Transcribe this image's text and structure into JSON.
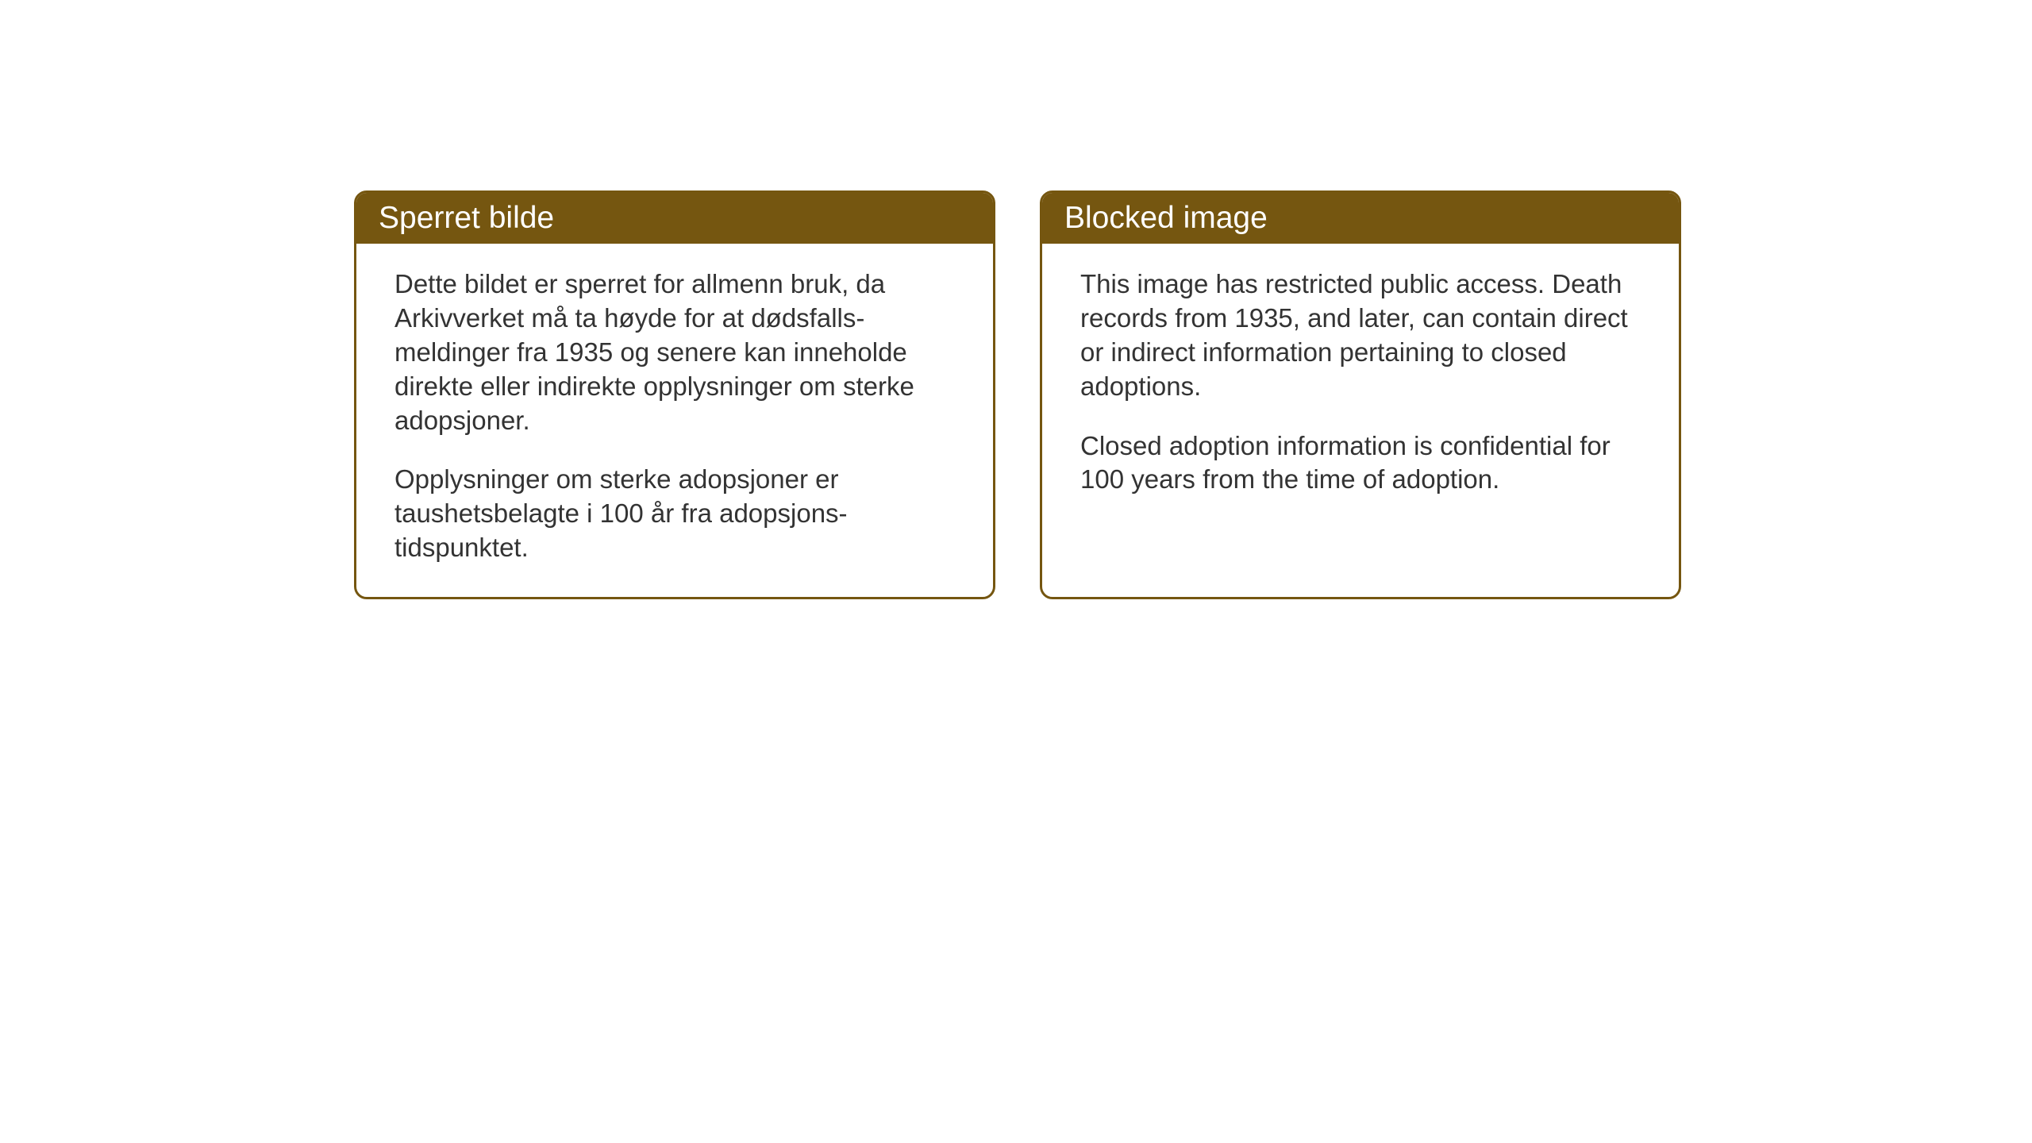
{
  "cards": {
    "norwegian": {
      "title": "Sperret bilde",
      "paragraph1": "Dette bildet er sperret for allmenn bruk, da Arkivverket må ta høyde for at dødsfalls-meldinger fra 1935 og senere kan inneholde direkte eller indirekte opplysninger om sterke adopsjoner.",
      "paragraph2": "Opplysninger om sterke adopsjoner er taushetsbelagte i 100 år fra adopsjons-tidspunktet."
    },
    "english": {
      "title": "Blocked image",
      "paragraph1": "This image has restricted public access. Death records from 1935, and later, can contain direct or indirect information pertaining to closed adoptions.",
      "paragraph2": "Closed adoption information is confidential for 100 years from the time of adoption."
    }
  },
  "styling": {
    "header_bg_color": "#755610",
    "header_text_color": "#ffffff",
    "border_color": "#755610",
    "body_text_color": "#333333",
    "card_bg_color": "#ffffff",
    "page_bg_color": "#ffffff",
    "border_radius": 16,
    "title_fontsize": 39,
    "body_fontsize": 33
  }
}
